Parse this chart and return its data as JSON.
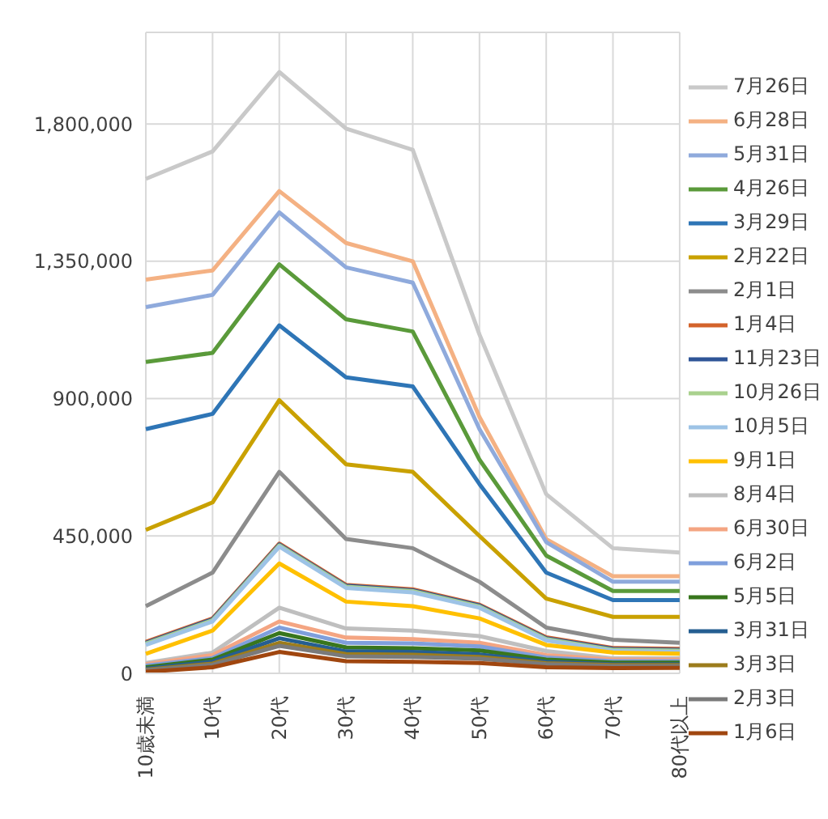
{
  "chart_data": {
    "type": "line",
    "categories": [
      "10歳未満",
      "10代",
      "20代",
      "30代",
      "40代",
      "50代",
      "60代",
      "70代",
      "80代以上"
    ],
    "ylim": [
      0,
      2100000
    ],
    "yticks": [
      0,
      {
        "value": 450000,
        "label": "450,000"
      },
      {
        "value": 900000,
        "label": "900,000"
      },
      {
        "value": 1350000,
        "label": "1,350,000"
      },
      {
        "value": 1800000,
        "label": "1,800,000"
      }
    ],
    "grid": true,
    "legend": "right",
    "marker": "none",
    "line_style": "solid",
    "series": [
      {
        "name": "7月26日",
        "color": "#c9c9c9",
        "values": [
          1620000,
          1710000,
          1970000,
          1785000,
          1715000,
          1110000,
          587000,
          410000,
          396000
        ]
      },
      {
        "name": "6月28日",
        "color": "#f4b183",
        "values": [
          1290000,
          1320000,
          1580000,
          1410000,
          1350000,
          840000,
          440000,
          318000,
          318000
        ]
      },
      {
        "name": "5月31日",
        "color": "#8faadc",
        "values": [
          1200000,
          1240000,
          1510000,
          1330000,
          1280000,
          800000,
          430000,
          300000,
          300000
        ]
      },
      {
        "name": "4月26日",
        "color": "#5a9a3a",
        "values": [
          1020000,
          1050000,
          1340000,
          1160000,
          1120000,
          700000,
          386000,
          270000,
          270000
        ]
      },
      {
        "name": "3月29日",
        "color": "#2e75b6",
        "values": [
          800000,
          850000,
          1140000,
          970000,
          940000,
          620000,
          330000,
          240000,
          240000
        ]
      },
      {
        "name": "2月22日",
        "color": "#c9a100",
        "values": [
          470000,
          560000,
          895000,
          685000,
          660000,
          450000,
          245000,
          185000,
          185000
        ]
      },
      {
        "name": "2月1日",
        "color": "#8c8c8c",
        "values": [
          220000,
          330000,
          660000,
          440000,
          410000,
          300000,
          150000,
          110000,
          100000
        ]
      },
      {
        "name": "1月4日",
        "color": "#d3632b",
        "values": [
          103000,
          180000,
          425000,
          290000,
          275000,
          225000,
          118000,
          83000,
          80000
        ]
      },
      {
        "name": "11月23日",
        "color": "#2f5597",
        "values": [
          100000,
          177000,
          422000,
          287000,
          272000,
          222000,
          115000,
          80000,
          77000
        ]
      },
      {
        "name": "10月26日",
        "color": "#a9d18e",
        "values": [
          97000,
          174000,
          419000,
          284000,
          269000,
          219000,
          112000,
          77000,
          74000
        ]
      },
      {
        "name": "10月5日",
        "color": "#9dc3e6",
        "values": [
          93000,
          170000,
          415000,
          280000,
          265000,
          215000,
          108000,
          73000,
          70000
        ]
      },
      {
        "name": "9月1日",
        "color": "#ffc000",
        "values": [
          64000,
          140000,
          360000,
          235000,
          220000,
          180000,
          93000,
          68000,
          64000
        ]
      },
      {
        "name": "8月4日",
        "color": "#bfbfbf",
        "values": [
          34000,
          68000,
          215000,
          147000,
          140000,
          122000,
          73000,
          49000,
          49000
        ]
      },
      {
        "name": "6月30日",
        "color": "#f4a582",
        "values": [
          30000,
          60000,
          170000,
          117000,
          112000,
          100000,
          60000,
          45000,
          45000
        ]
      },
      {
        "name": "6月2日",
        "color": "#7f9fdc",
        "values": [
          25000,
          50000,
          150000,
          100000,
          98000,
          88000,
          52000,
          40000,
          40000
        ]
      },
      {
        "name": "5月5日",
        "color": "#38761d",
        "values": [
          20000,
          45000,
          132000,
          85000,
          82000,
          75000,
          45000,
          35000,
          35000
        ]
      },
      {
        "name": "3月31日",
        "color": "#255e91",
        "values": [
          15000,
          38000,
          115000,
          72000,
          70000,
          62000,
          38000,
          30000,
          30000
        ]
      },
      {
        "name": "3月3日",
        "color": "#9c7c1c",
        "values": [
          12000,
          32000,
          100000,
          63000,
          61000,
          54000,
          33000,
          27000,
          27000
        ]
      },
      {
        "name": "2月3日",
        "color": "#7a7a7a",
        "values": [
          10000,
          28000,
          90000,
          56000,
          54000,
          48000,
          30000,
          24000,
          24000
        ]
      },
      {
        "name": "1月6日",
        "color": "#a0460f",
        "values": [
          5000,
          20000,
          70000,
          40000,
          38000,
          34000,
          20000,
          17000,
          18000
        ]
      }
    ]
  }
}
